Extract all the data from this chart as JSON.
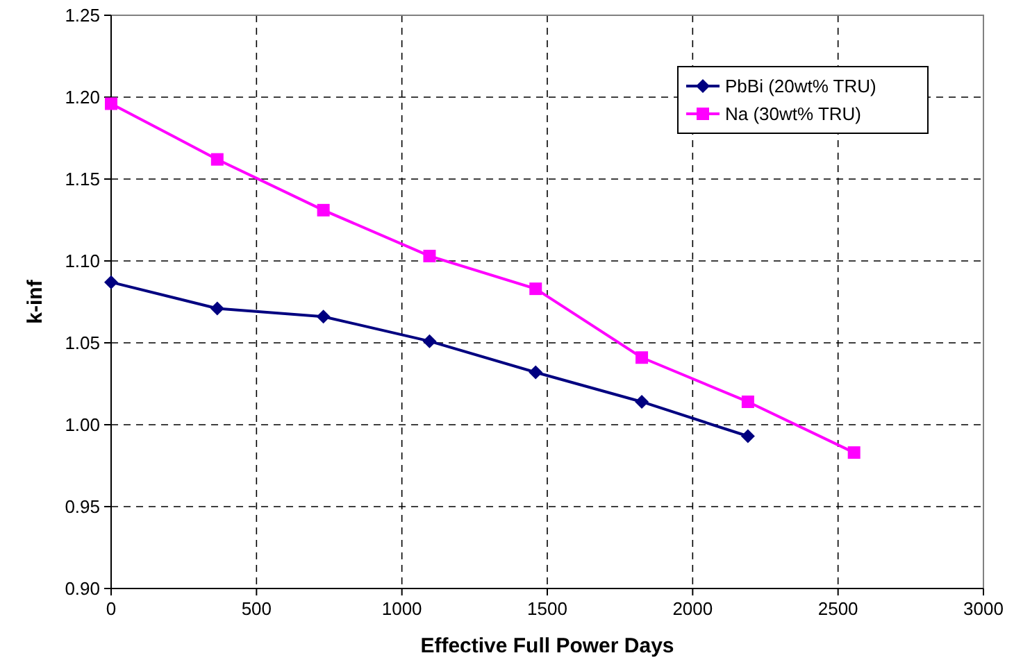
{
  "chart_data": {
    "type": "line",
    "xlabel": "Effective Full Power Days",
    "ylabel": "k-inf",
    "xlim": [
      0,
      3000
    ],
    "xticks": [
      0,
      500,
      1000,
      1500,
      2000,
      2500,
      3000
    ],
    "ylim": [
      0.9,
      1.25
    ],
    "yticks": [
      {
        "value": 0.9,
        "label": "0.90"
      },
      {
        "value": 0.95,
        "label": "0.95"
      },
      {
        "value": 1.0,
        "label": "1.00"
      },
      {
        "value": 1.05,
        "label": "1.05"
      },
      {
        "value": 1.1,
        "label": "1.10"
      },
      {
        "value": 1.15,
        "label": "1.15"
      },
      {
        "value": 1.2,
        "label": "1.20"
      },
      {
        "value": 1.25,
        "label": "1.25"
      }
    ],
    "grid": true,
    "legend": "top right",
    "line_style": "solid",
    "series": [
      {
        "name": "PbBi (20wt% TRU)",
        "color": "#000080",
        "marker": "diamond",
        "x": [
          0,
          365,
          730,
          1095,
          1460,
          1825,
          2190
        ],
        "values": [
          1.087,
          1.071,
          1.066,
          1.051,
          1.032,
          1.014,
          0.993
        ]
      },
      {
        "name": "Na (30wt% TRU)",
        "color": "#ff00ff",
        "marker": "square",
        "x": [
          0,
          365,
          730,
          1095,
          1460,
          1825,
          2190,
          2555
        ],
        "values": [
          1.196,
          1.162,
          1.131,
          1.103,
          1.083,
          1.041,
          1.014,
          0.983
        ]
      }
    ]
  }
}
